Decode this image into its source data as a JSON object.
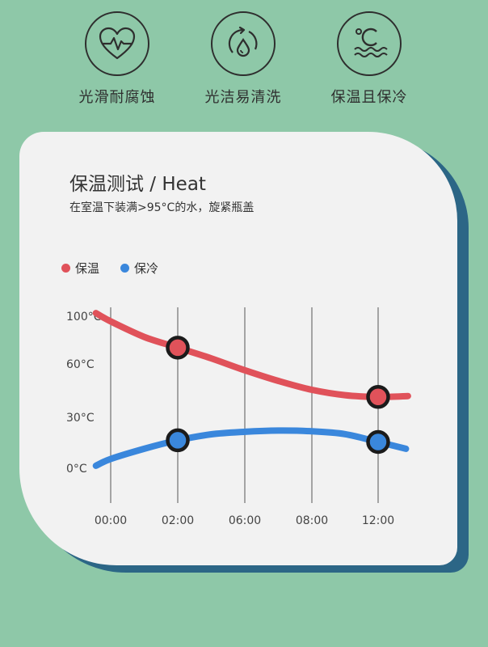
{
  "features": [
    {
      "label": "光滑耐腐蚀",
      "icon": "heart-pulse-icon"
    },
    {
      "label": "光洁易清洗",
      "icon": "water-drop-cycle-icon"
    },
    {
      "label": "保温且保冷",
      "icon": "celsius-waves-icon"
    }
  ],
  "colors": {
    "background": "#8ec8a8",
    "card": "#f2f2f2",
    "card_shadow": "#2c6686",
    "heat": "#e0525a",
    "cold": "#3a87dc",
    "marker_ring": "#1b1b1b"
  },
  "chart_data": {
    "type": "line",
    "title": "保温测试 / Heat",
    "subtitle": "在室温下装满>95°C的水，旋紧瓶盖",
    "legend": {
      "placement": "top-left"
    },
    "x_tick_labels": [
      "00:00",
      "02:00",
      "06:00",
      "08:00",
      "12:00"
    ],
    "y_tick_labels": [
      {
        "label": "100°C",
        "value": 100
      },
      {
        "label": "60°C",
        "value": 60
      },
      {
        "label": "30°C",
        "value": 30
      },
      {
        "label": "0°C",
        "value": 0
      }
    ],
    "series": [
      {
        "name": "保温",
        "color": "#e0525a",
        "curve": [
          [
            -0.22,
            102
          ],
          [
            0,
            95
          ],
          [
            0.5,
            82
          ],
          [
            1,
            73
          ],
          [
            1.5,
            64
          ],
          [
            2,
            56
          ],
          [
            2.5,
            50
          ],
          [
            3,
            45
          ],
          [
            3.5,
            42
          ],
          [
            4,
            41
          ],
          [
            4.45,
            41.5
          ]
        ],
        "markers": [
          [
            1,
            73
          ],
          [
            4,
            41
          ]
        ]
      },
      {
        "name": "保冷",
        "color": "#3a87dc",
        "curve": [
          [
            -0.22,
            1
          ],
          [
            0,
            5
          ],
          [
            0.5,
            11
          ],
          [
            1,
            16
          ],
          [
            1.5,
            19.5
          ],
          [
            2,
            21
          ],
          [
            2.5,
            21.7
          ],
          [
            3,
            21.3
          ],
          [
            3.5,
            19.6
          ],
          [
            4,
            15
          ],
          [
            4.42,
            11
          ]
        ],
        "markers": [
          [
            1,
            16
          ],
          [
            4,
            15
          ]
        ]
      }
    ],
    "grid": {
      "vertical": true,
      "horizontal": false
    }
  }
}
